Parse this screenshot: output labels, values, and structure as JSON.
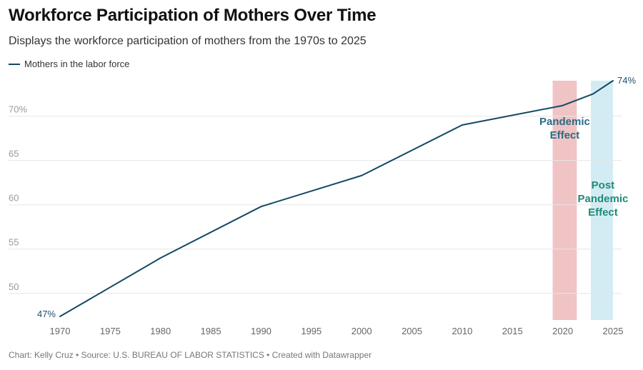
{
  "title": "Workforce Participation of Mothers Over Time",
  "subtitle": "Displays the workforce participation of mothers from the 1970s to 2025",
  "footer": "Chart: Kelly Cruz • Source: U.S. BUREAU OF LABOR STATISTICS • Created with Datawrapper",
  "colors": {
    "line": "#134a63",
    "pandemic_band": "#f0c3c5",
    "post_pandemic_band": "#d3ecf4",
    "pandemic_text": "#2b6b85",
    "post_pandemic_text": "#1f8a78",
    "grid": "#e6e6e6"
  },
  "chart_data": {
    "type": "line",
    "title": "Workforce Participation of Mothers Over Time",
    "xlabel": "",
    "ylabel": "",
    "xlim": [
      1970,
      2025
    ],
    "ylim": [
      47,
      74
    ],
    "x_ticks": [
      "1970",
      "1975",
      "1980",
      "1985",
      "1990",
      "1995",
      "2000",
      "2005",
      "2010",
      "2015",
      "2020",
      "2025"
    ],
    "y_ticks": [
      {
        "value": 70,
        "label": "70%"
      },
      {
        "value": 65,
        "label": "65"
      },
      {
        "value": 60,
        "label": "60"
      },
      {
        "value": 55,
        "label": "55"
      },
      {
        "value": 50,
        "label": "50"
      }
    ],
    "grid": true,
    "legend": "top-left",
    "series": [
      {
        "name": "Mothers in the labor force",
        "x": [
          1970,
          1980,
          1990,
          2000,
          2010,
          2020,
          2023,
          2025
        ],
        "values": [
          47.4,
          54.0,
          59.8,
          63.3,
          69.0,
          71.2,
          72.5,
          74.0
        ]
      }
    ],
    "labels": {
      "start": "47%",
      "end": "74%"
    },
    "bands": [
      {
        "name": "pandemic",
        "from": 2019,
        "to": 2021.4,
        "label_lines": [
          "Pandemic",
          "Effect"
        ]
      },
      {
        "name": "post-pandemic",
        "from": 2022.8,
        "to": 2025,
        "label_lines": [
          "Post",
          "Pandemic",
          "Effect"
        ]
      }
    ]
  }
}
